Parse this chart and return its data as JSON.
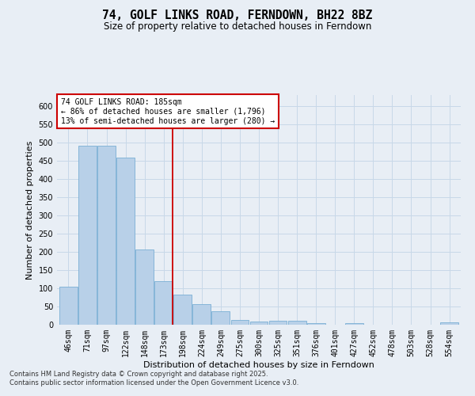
{
  "title": "74, GOLF LINKS ROAD, FERNDOWN, BH22 8BZ",
  "subtitle": "Size of property relative to detached houses in Ferndown",
  "xlabel": "Distribution of detached houses by size in Ferndown",
  "ylabel": "Number of detached properties",
  "categories": [
    "46sqm",
    "71sqm",
    "97sqm",
    "122sqm",
    "148sqm",
    "173sqm",
    "198sqm",
    "224sqm",
    "249sqm",
    "275sqm",
    "300sqm",
    "325sqm",
    "351sqm",
    "376sqm",
    "401sqm",
    "427sqm",
    "452sqm",
    "478sqm",
    "503sqm",
    "528sqm",
    "554sqm"
  ],
  "values": [
    105,
    490,
    490,
    458,
    207,
    120,
    82,
    57,
    38,
    13,
    8,
    11,
    11,
    4,
    0,
    5,
    0,
    0,
    0,
    0,
    7
  ],
  "bar_color": "#b8d0e8",
  "bar_edge_color": "#7aafd4",
  "grid_color": "#c8d8e8",
  "vline_color": "#cc0000",
  "annotation_text": "74 GOLF LINKS ROAD: 185sqm\n← 86% of detached houses are smaller (1,796)\n13% of semi-detached houses are larger (280) →",
  "annotation_box_color": "#ffffff",
  "annotation_box_edge": "#cc0000",
  "footnote": "Contains HM Land Registry data © Crown copyright and database right 2025.\nContains public sector information licensed under the Open Government Licence v3.0.",
  "ylim": [
    0,
    630
  ],
  "yticks": [
    0,
    50,
    100,
    150,
    200,
    250,
    300,
    350,
    400,
    450,
    500,
    550,
    600
  ],
  "background_color": "#e8eef5",
  "plot_bg_color": "#e8eef5",
  "title_fontsize": 10.5,
  "subtitle_fontsize": 8.5,
  "tick_fontsize": 7,
  "label_fontsize": 8,
  "annotation_fontsize": 7,
  "footnote_fontsize": 6
}
